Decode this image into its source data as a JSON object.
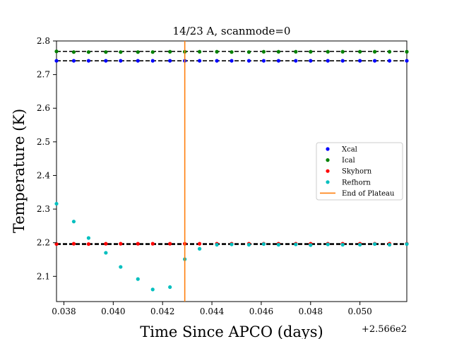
{
  "chart_data": {
    "type": "scatter",
    "title": "14/23 A, scanmode=0",
    "xlabel": "Time Since APCO (days)",
    "ylabel": "Temperature (K)",
    "x_offset_label": "+2.566e2",
    "xlim": [
      0.0377,
      0.0519
    ],
    "ylim": [
      2.025,
      2.8
    ],
    "xticks": [
      0.038,
      0.04,
      0.042,
      0.044,
      0.046,
      0.048,
      0.05
    ],
    "xtick_labels": [
      "0.038",
      "0.040",
      "0.042",
      "0.044",
      "0.046",
      "0.048",
      "0.050"
    ],
    "yticks": [
      2.1,
      2.2,
      2.3,
      2.4,
      2.5,
      2.6,
      2.7,
      2.8
    ],
    "ytick_labels": [
      "2.1",
      "2.2",
      "2.3",
      "2.4",
      "2.5",
      "2.6",
      "2.7",
      "2.8"
    ],
    "grid": false,
    "legend_position": "center-right",
    "x": [
      0.0377,
      0.0384,
      0.039,
      0.0397,
      0.0403,
      0.041,
      0.0416,
      0.0423,
      0.0429,
      0.0435,
      0.0442,
      0.0448,
      0.0455,
      0.0461,
      0.0467,
      0.0474,
      0.048,
      0.0487,
      0.0493,
      0.05,
      0.0506,
      0.0512,
      0.0519
    ],
    "series": [
      {
        "name": "Xcal",
        "color": "#0000ff",
        "values": [
          2.741,
          2.741,
          2.741,
          2.741,
          2.741,
          2.741,
          2.741,
          2.741,
          2.741,
          2.741,
          2.741,
          2.741,
          2.741,
          2.741,
          2.741,
          2.741,
          2.741,
          2.741,
          2.741,
          2.741,
          2.741,
          2.741,
          2.741
        ]
      },
      {
        "name": "Ical",
        "color": "#008000",
        "values": [
          2.769,
          2.767,
          2.767,
          2.767,
          2.767,
          2.767,
          2.767,
          2.768,
          2.768,
          2.768,
          2.768,
          2.767,
          2.767,
          2.768,
          2.768,
          2.768,
          2.768,
          2.768,
          2.768,
          2.768,
          2.768,
          2.768,
          2.768
        ]
      },
      {
        "name": "Skyhorn",
        "color": "#ff0000",
        "values": [
          2.196,
          2.197,
          2.196,
          2.197,
          2.197,
          2.197,
          2.197,
          2.197,
          2.197,
          2.197,
          2.197,
          2.197,
          2.197,
          2.197,
          2.197,
          2.197,
          2.197,
          2.197,
          2.197,
          2.197,
          2.197,
          2.197,
          2.197
        ]
      },
      {
        "name": "Refhorn",
        "color": "#00bfbf",
        "values": [
          2.316,
          2.263,
          2.214,
          2.17,
          2.128,
          2.092,
          2.061,
          2.068,
          2.151,
          2.182,
          2.194,
          2.195,
          2.194,
          2.196,
          2.194,
          2.195,
          2.193,
          2.195,
          2.194,
          2.194,
          2.196,
          2.194,
          2.196
        ]
      }
    ],
    "reference_lines": [
      {
        "kind": "hline",
        "y": 2.769,
        "color": "#000000",
        "style": "dashed"
      },
      {
        "kind": "hline",
        "y": 2.741,
        "color": "#000000",
        "style": "dashed"
      },
      {
        "kind": "hline",
        "y": 2.197,
        "color": "#000000",
        "style": "dashed"
      },
      {
        "kind": "hline",
        "y": 2.195,
        "color": "#000000",
        "style": "dashed"
      },
      {
        "kind": "vline",
        "x": 0.0429,
        "color": "#ff7f0e",
        "style": "solid",
        "name": "End of Plateau"
      }
    ]
  }
}
